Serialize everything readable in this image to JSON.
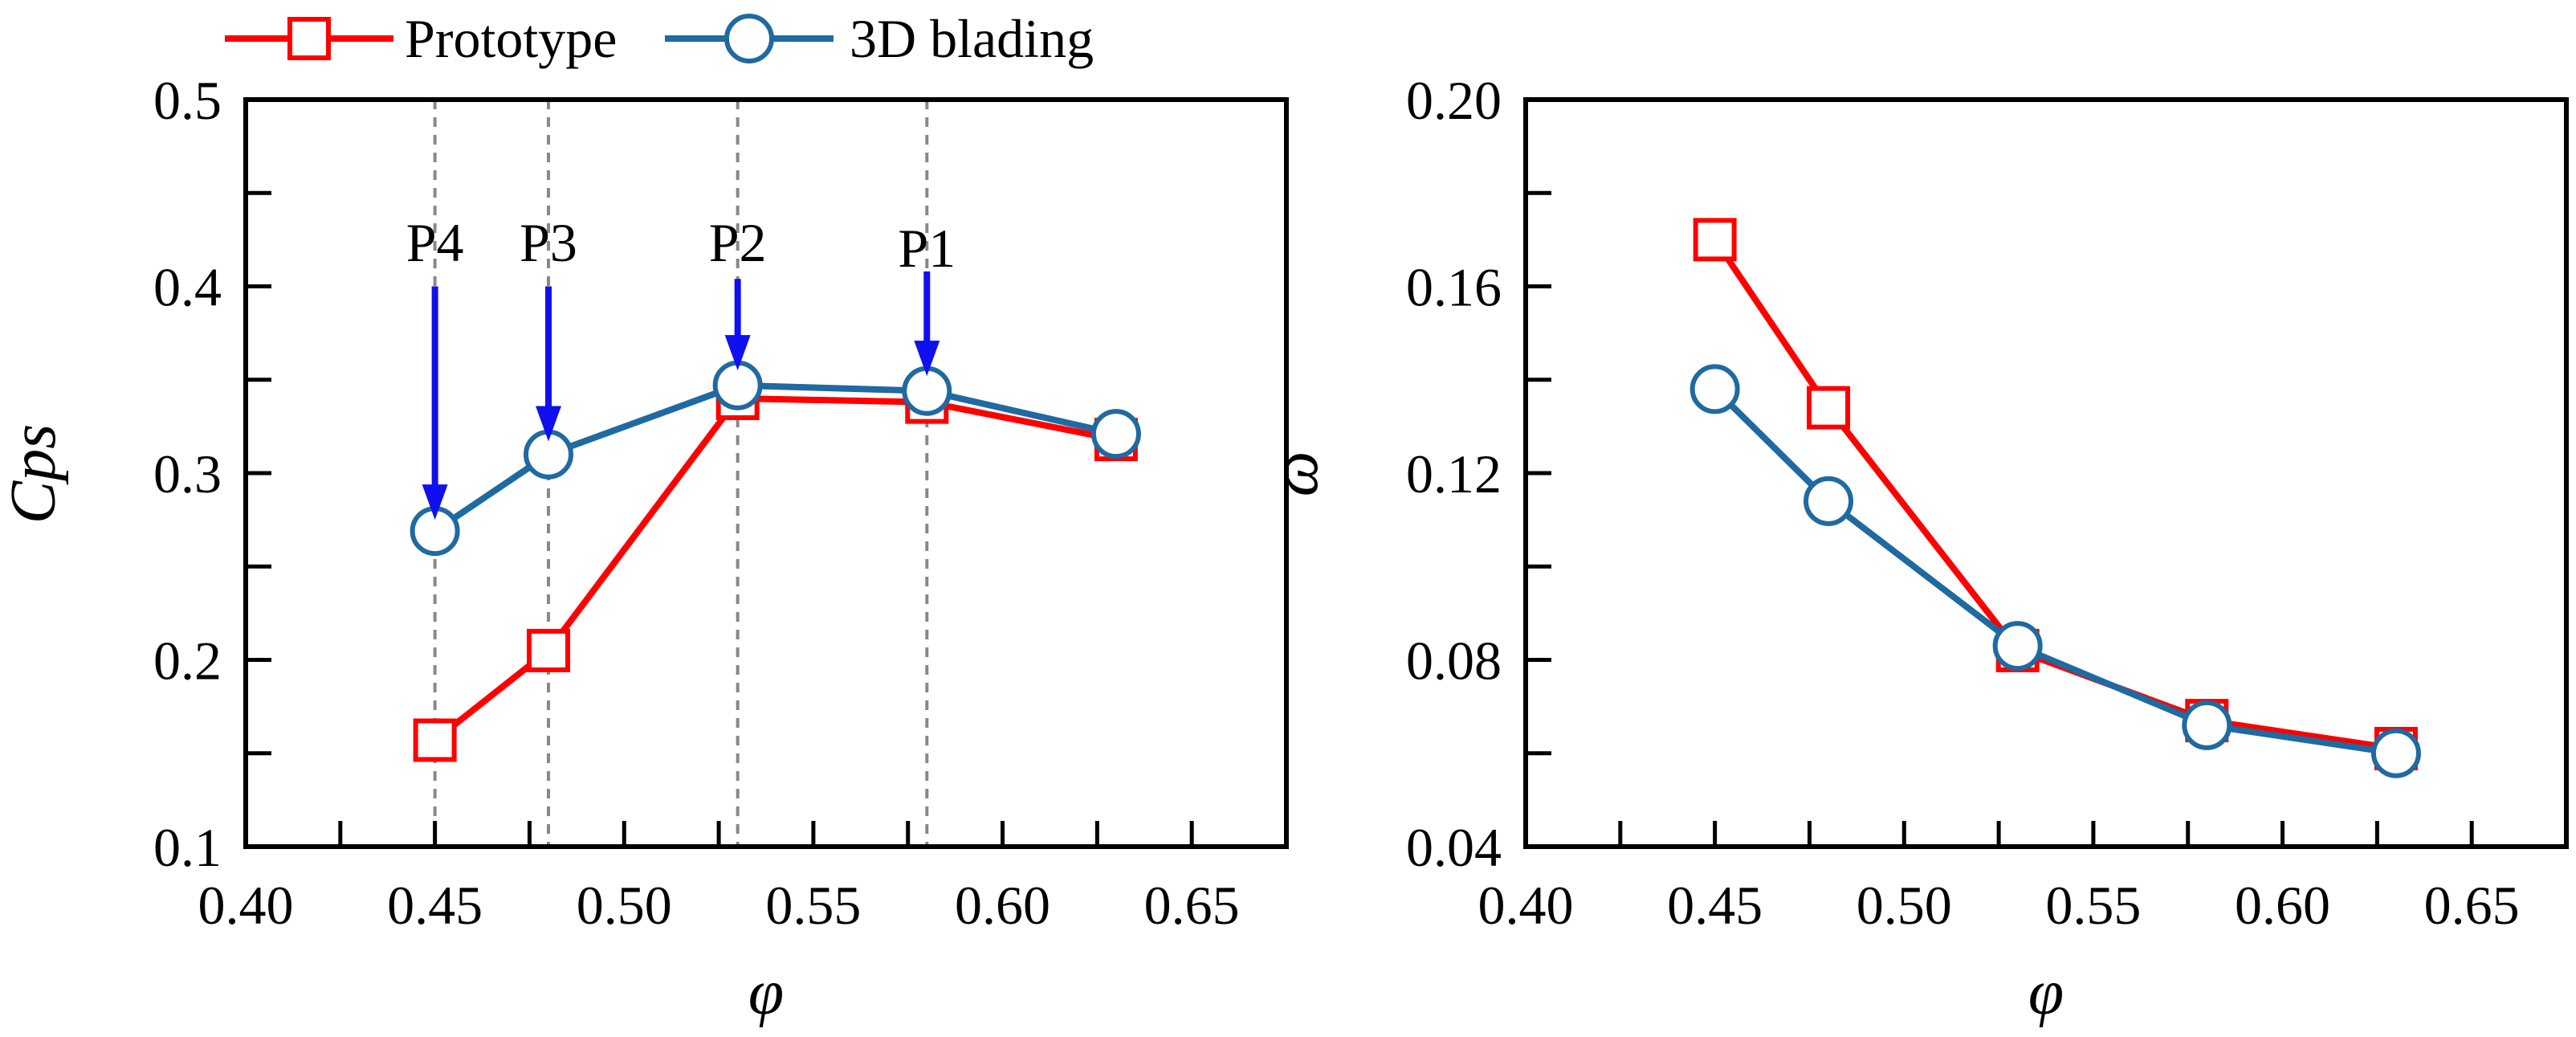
{
  "legend": {
    "entries": [
      {
        "label": "Prototype",
        "color": "#ff0000",
        "marker": "square"
      },
      {
        "label": "3D blading",
        "color": "#1f6aa0",
        "marker": "circle"
      }
    ]
  },
  "colors": {
    "prototype": "#ff0000",
    "blading": "#1f6aa0",
    "arrow": "#1010ee",
    "guide": "#888888"
  },
  "chart_data": [
    {
      "type": "line",
      "title": "",
      "xlabel": "φ",
      "ylabel": "Cps",
      "xlim": [
        0.4,
        0.675
      ],
      "ylim": [
        0.1,
        0.5
      ],
      "x_ticks": [
        0.4,
        0.45,
        0.5,
        0.55,
        0.6,
        0.65
      ],
      "x_tick_labels": [
        "0.40",
        "0.45",
        "0.50",
        "0.55",
        "0.60",
        "0.65"
      ],
      "y_ticks": [
        0.1,
        0.2,
        0.3,
        0.4,
        0.5
      ],
      "y_tick_labels": [
        "0.1",
        "0.2",
        "0.3",
        "0.4",
        "0.5"
      ],
      "x_minor_step": 0.025,
      "y_minor_step": 0.05,
      "grid": false,
      "series": [
        {
          "name": "Prototype",
          "x": [
            0.45,
            0.48,
            0.53,
            0.58,
            0.63
          ],
          "values": [
            0.157,
            0.205,
            0.34,
            0.338,
            0.318
          ]
        },
        {
          "name": "3D blading",
          "x": [
            0.45,
            0.48,
            0.53,
            0.58,
            0.63
          ],
          "values": [
            0.269,
            0.31,
            0.347,
            0.344,
            0.321
          ]
        }
      ],
      "guide_lines_x": [
        0.45,
        0.48,
        0.53,
        0.58
      ],
      "annotations": [
        {
          "text": "P4",
          "x": 0.45,
          "y_text": 0.411,
          "y_arrow_top": 0.4,
          "y_arrow_tip": 0.275
        },
        {
          "text": "P3",
          "x": 0.48,
          "y_text": 0.411,
          "y_arrow_top": 0.4,
          "y_arrow_tip": 0.317
        },
        {
          "text": "P2",
          "x": 0.53,
          "y_text": 0.411,
          "y_arrow_top": 0.404,
          "y_arrow_tip": 0.355
        },
        {
          "text": "P1",
          "x": 0.58,
          "y_text": 0.408,
          "y_arrow_top": 0.408,
          "y_arrow_tip": 0.352
        }
      ]
    },
    {
      "type": "line",
      "title": "",
      "xlabel": "φ",
      "ylabel": "ω",
      "xlim": [
        0.4,
        0.675
      ],
      "ylim": [
        0.04,
        0.2
      ],
      "x_ticks": [
        0.4,
        0.45,
        0.5,
        0.55,
        0.6,
        0.65
      ],
      "x_tick_labels": [
        "0.40",
        "0.45",
        "0.50",
        "0.55",
        "0.60",
        "0.65"
      ],
      "y_ticks": [
        0.04,
        0.08,
        0.12,
        0.16,
        0.2
      ],
      "y_tick_labels": [
        "0.04",
        "0.08",
        "0.12",
        "0.16",
        "0.20"
      ],
      "x_minor_step": 0.025,
      "y_minor_step": 0.02,
      "grid": false,
      "series": [
        {
          "name": "Prototype",
          "x": [
            0.45,
            0.48,
            0.53,
            0.58,
            0.63
          ],
          "values": [
            0.17,
            0.134,
            0.082,
            0.067,
            0.061
          ]
        },
        {
          "name": "3D blading",
          "x": [
            0.45,
            0.48,
            0.53,
            0.58,
            0.63
          ],
          "values": [
            0.138,
            0.114,
            0.083,
            0.066,
            0.06
          ]
        }
      ],
      "guide_lines_x": [],
      "annotations": []
    }
  ]
}
